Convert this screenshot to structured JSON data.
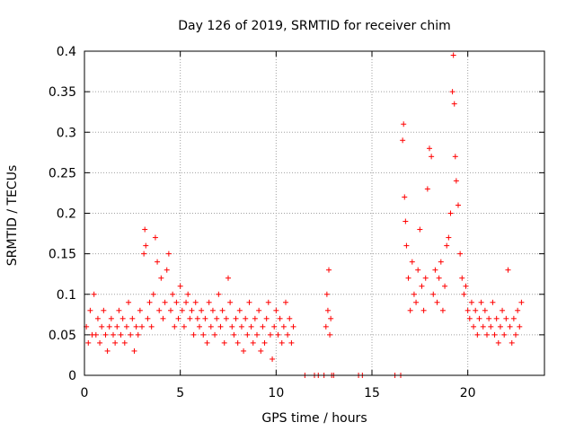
{
  "chart_data": {
    "type": "scatter",
    "title": "Day 126 of 2019, SRMTID for receiver chim",
    "xlabel": "GPS time / hours",
    "ylabel": "SRMTID / TECUs",
    "xlim": [
      0,
      24
    ],
    "ylim": [
      0,
      0.4
    ],
    "x_ticks": [
      0,
      5,
      10,
      15,
      20
    ],
    "x_tick_labels": [
      "0",
      "5",
      "10",
      "15",
      "20"
    ],
    "y_ticks": [
      0,
      0.05,
      0.1,
      0.15,
      0.2,
      0.25,
      0.3,
      0.35,
      0.4
    ],
    "y_tick_labels": [
      "0",
      "0.05",
      "0.1",
      "0.15",
      "0.2",
      "0.25",
      "0.3",
      "0.35",
      "0.4"
    ],
    "grid": true,
    "marker": "+",
    "color": "#ff0000",
    "series": [
      {
        "name": "SRMTID",
        "points": [
          [
            0.1,
            0.06
          ],
          [
            0.2,
            0.04
          ],
          [
            0.3,
            0.08
          ],
          [
            0.4,
            0.05
          ],
          [
            0.5,
            0.1
          ],
          [
            0.6,
            0.05
          ],
          [
            0.7,
            0.07
          ],
          [
            0.8,
            0.04
          ],
          [
            0.9,
            0.06
          ],
          [
            1.0,
            0.08
          ],
          [
            1.1,
            0.05
          ],
          [
            1.2,
            0.03
          ],
          [
            1.3,
            0.06
          ],
          [
            1.4,
            0.07
          ],
          [
            1.5,
            0.05
          ],
          [
            1.6,
            0.04
          ],
          [
            1.7,
            0.06
          ],
          [
            1.8,
            0.08
          ],
          [
            1.9,
            0.05
          ],
          [
            2.0,
            0.07
          ],
          [
            2.1,
            0.04
          ],
          [
            2.2,
            0.06
          ],
          [
            2.3,
            0.09
          ],
          [
            2.4,
            0.05
          ],
          [
            2.5,
            0.07
          ],
          [
            2.6,
            0.03
          ],
          [
            2.7,
            0.06
          ],
          [
            2.8,
            0.05
          ],
          [
            2.9,
            0.08
          ],
          [
            3.0,
            0.06
          ],
          [
            3.1,
            0.15
          ],
          [
            3.15,
            0.18
          ],
          [
            3.2,
            0.16
          ],
          [
            3.3,
            0.07
          ],
          [
            3.4,
            0.09
          ],
          [
            3.5,
            0.06
          ],
          [
            3.6,
            0.1
          ],
          [
            3.7,
            0.17
          ],
          [
            3.8,
            0.14
          ],
          [
            3.9,
            0.08
          ],
          [
            4.0,
            0.12
          ],
          [
            4.1,
            0.07
          ],
          [
            4.2,
            0.09
          ],
          [
            4.3,
            0.13
          ],
          [
            4.4,
            0.15
          ],
          [
            4.5,
            0.08
          ],
          [
            4.6,
            0.1
          ],
          [
            4.7,
            0.06
          ],
          [
            4.8,
            0.09
          ],
          [
            4.9,
            0.07
          ],
          [
            5.0,
            0.11
          ],
          [
            5.1,
            0.08
          ],
          [
            5.2,
            0.06
          ],
          [
            5.3,
            0.09
          ],
          [
            5.4,
            0.1
          ],
          [
            5.5,
            0.07
          ],
          [
            5.6,
            0.08
          ],
          [
            5.7,
            0.05
          ],
          [
            5.8,
            0.09
          ],
          [
            5.9,
            0.07
          ],
          [
            6.0,
            0.06
          ],
          [
            6.1,
            0.08
          ],
          [
            6.2,
            0.05
          ],
          [
            6.3,
            0.07
          ],
          [
            6.4,
            0.04
          ],
          [
            6.5,
            0.09
          ],
          [
            6.6,
            0.06
          ],
          [
            6.7,
            0.08
          ],
          [
            6.8,
            0.05
          ],
          [
            6.9,
            0.07
          ],
          [
            7.0,
            0.1
          ],
          [
            7.1,
            0.06
          ],
          [
            7.2,
            0.08
          ],
          [
            7.3,
            0.04
          ],
          [
            7.4,
            0.07
          ],
          [
            7.5,
            0.12
          ],
          [
            7.6,
            0.09
          ],
          [
            7.7,
            0.06
          ],
          [
            7.8,
            0.05
          ],
          [
            7.9,
            0.07
          ],
          [
            8.0,
            0.04
          ],
          [
            8.1,
            0.08
          ],
          [
            8.2,
            0.06
          ],
          [
            8.3,
            0.03
          ],
          [
            8.4,
            0.07
          ],
          [
            8.5,
            0.05
          ],
          [
            8.6,
            0.09
          ],
          [
            8.7,
            0.06
          ],
          [
            8.8,
            0.04
          ],
          [
            8.9,
            0.07
          ],
          [
            9.0,
            0.05
          ],
          [
            9.1,
            0.08
          ],
          [
            9.2,
            0.03
          ],
          [
            9.3,
            0.06
          ],
          [
            9.4,
            0.04
          ],
          [
            9.5,
            0.07
          ],
          [
            9.6,
            0.09
          ],
          [
            9.7,
            0.05
          ],
          [
            9.8,
            0.02
          ],
          [
            9.9,
            0.06
          ],
          [
            10.0,
            0.08
          ],
          [
            10.1,
            0.05
          ],
          [
            10.2,
            0.07
          ],
          [
            10.3,
            0.04
          ],
          [
            10.4,
            0.06
          ],
          [
            10.5,
            0.09
          ],
          [
            10.6,
            0.05
          ],
          [
            10.7,
            0.07
          ],
          [
            10.8,
            0.04
          ],
          [
            10.9,
            0.06
          ],
          [
            11.5,
            0.0
          ],
          [
            12.0,
            0.0
          ],
          [
            12.2,
            0.0
          ],
          [
            12.5,
            0.0
          ],
          [
            12.6,
            0.06
          ],
          [
            12.65,
            0.1
          ],
          [
            12.7,
            0.08
          ],
          [
            12.75,
            0.13
          ],
          [
            12.8,
            0.05
          ],
          [
            12.85,
            0.07
          ],
          [
            12.9,
            0.0
          ],
          [
            13.0,
            0.0
          ],
          [
            14.3,
            0.0
          ],
          [
            14.5,
            0.0
          ],
          [
            16.2,
            0.0
          ],
          [
            16.5,
            0.0
          ],
          [
            16.6,
            0.29
          ],
          [
            16.65,
            0.31
          ],
          [
            16.7,
            0.22
          ],
          [
            16.75,
            0.19
          ],
          [
            16.8,
            0.16
          ],
          [
            16.9,
            0.12
          ],
          [
            17.0,
            0.08
          ],
          [
            17.1,
            0.14
          ],
          [
            17.2,
            0.1
          ],
          [
            17.3,
            0.09
          ],
          [
            17.4,
            0.13
          ],
          [
            17.5,
            0.18
          ],
          [
            17.6,
            0.11
          ],
          [
            17.7,
            0.08
          ],
          [
            17.8,
            0.12
          ],
          [
            17.9,
            0.23
          ],
          [
            18.0,
            0.28
          ],
          [
            18.1,
            0.27
          ],
          [
            18.2,
            0.1
          ],
          [
            18.3,
            0.13
          ],
          [
            18.4,
            0.09
          ],
          [
            18.5,
            0.12
          ],
          [
            18.6,
            0.14
          ],
          [
            18.7,
            0.08
          ],
          [
            18.8,
            0.11
          ],
          [
            18.9,
            0.16
          ],
          [
            19.0,
            0.17
          ],
          [
            19.1,
            0.2
          ],
          [
            19.2,
            0.35
          ],
          [
            19.25,
            0.395
          ],
          [
            19.3,
            0.335
          ],
          [
            19.35,
            0.27
          ],
          [
            19.4,
            0.24
          ],
          [
            19.5,
            0.21
          ],
          [
            19.6,
            0.15
          ],
          [
            19.7,
            0.12
          ],
          [
            19.8,
            0.1
          ],
          [
            19.9,
            0.11
          ],
          [
            20.0,
            0.08
          ],
          [
            20.1,
            0.07
          ],
          [
            20.2,
            0.09
          ],
          [
            20.3,
            0.06
          ],
          [
            20.4,
            0.08
          ],
          [
            20.5,
            0.05
          ],
          [
            20.6,
            0.07
          ],
          [
            20.7,
            0.09
          ],
          [
            20.8,
            0.06
          ],
          [
            20.9,
            0.08
          ],
          [
            21.0,
            0.05
          ],
          [
            21.1,
            0.07
          ],
          [
            21.2,
            0.06
          ],
          [
            21.3,
            0.09
          ],
          [
            21.4,
            0.05
          ],
          [
            21.5,
            0.07
          ],
          [
            21.6,
            0.04
          ],
          [
            21.7,
            0.06
          ],
          [
            21.8,
            0.08
          ],
          [
            21.9,
            0.05
          ],
          [
            22.0,
            0.07
          ],
          [
            22.1,
            0.13
          ],
          [
            22.2,
            0.06
          ],
          [
            22.3,
            0.04
          ],
          [
            22.4,
            0.07
          ],
          [
            22.5,
            0.05
          ],
          [
            22.6,
            0.08
          ],
          [
            22.7,
            0.06
          ],
          [
            22.8,
            0.09
          ]
        ]
      }
    ]
  }
}
